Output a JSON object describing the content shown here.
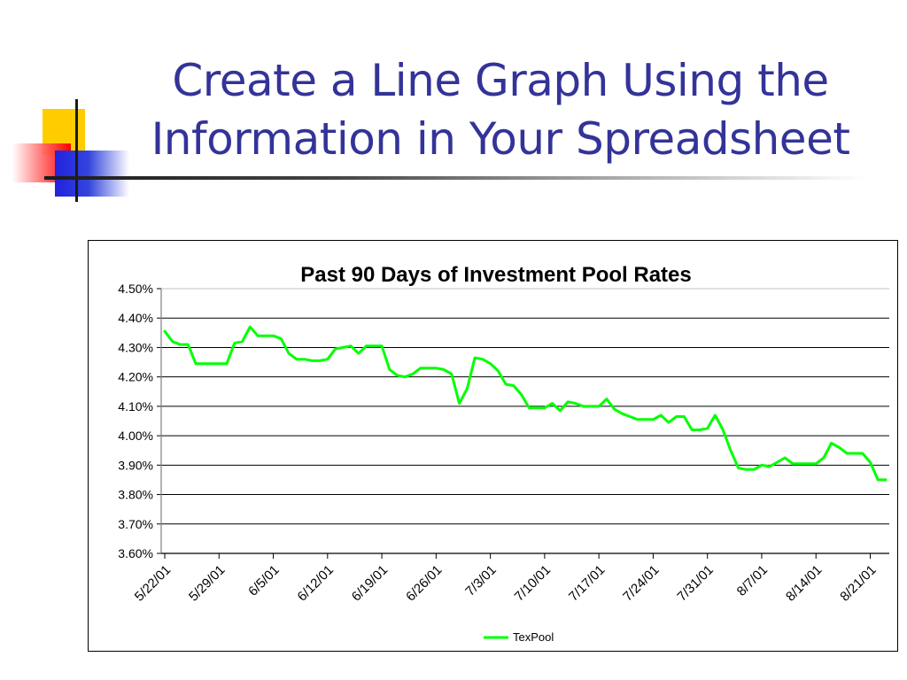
{
  "slide": {
    "title_line1": "Create a Line Graph Using the",
    "title_line2": "Information in Your Spreadsheet"
  },
  "colors": {
    "title": "#333399",
    "series": "#00ff00",
    "gridline": "#000000",
    "axis": "#808080"
  },
  "chart_data": {
    "type": "line",
    "title": "Past 90 Days of Investment Pool Rates",
    "xlabel": "",
    "ylabel": "",
    "ylim": [
      3.6,
      4.5
    ],
    "yticks": [
      "4.50%",
      "4.40%",
      "4.30%",
      "4.20%",
      "4.10%",
      "4.00%",
      "3.90%",
      "3.80%",
      "3.70%",
      "3.60%"
    ],
    "xticks": [
      "5/22/01",
      "5/29/01",
      "6/5/01",
      "6/12/01",
      "6/19/01",
      "6/26/01",
      "7/3/01",
      "7/10/01",
      "7/17/01",
      "7/24/01",
      "7/31/01",
      "8/7/01",
      "8/14/01",
      "8/21/01"
    ],
    "grid": "horizontal",
    "legend": "bottom",
    "series": [
      {
        "name": "TexPool",
        "color": "#00ff00",
        "points": [
          [
            "5/22/01",
            4.355
          ],
          [
            "5/23/01",
            4.32
          ],
          [
            "5/24/01",
            4.31
          ],
          [
            "5/25/01",
            4.31
          ],
          [
            "5/26/01",
            4.245
          ],
          [
            "5/27/01",
            4.245
          ],
          [
            "5/28/01",
            4.245
          ],
          [
            "5/29/01",
            4.245
          ],
          [
            "5/30/01",
            4.245
          ],
          [
            "5/31/01",
            4.315
          ],
          [
            "6/1/01",
            4.32
          ],
          [
            "6/2/01",
            4.37
          ],
          [
            "6/3/01",
            4.34
          ],
          [
            "6/4/01",
            4.34
          ],
          [
            "6/5/01",
            4.34
          ],
          [
            "6/6/01",
            4.33
          ],
          [
            "6/7/01",
            4.28
          ],
          [
            "6/8/01",
            4.26
          ],
          [
            "6/9/01",
            4.26
          ],
          [
            "6/10/01",
            4.255
          ],
          [
            "6/11/01",
            4.255
          ],
          [
            "6/12/01",
            4.26
          ],
          [
            "6/13/01",
            4.295
          ],
          [
            "6/14/01",
            4.3
          ],
          [
            "6/15/01",
            4.305
          ],
          [
            "6/16/01",
            4.28
          ],
          [
            "6/17/01",
            4.305
          ],
          [
            "6/18/01",
            4.305
          ],
          [
            "6/19/01",
            4.305
          ],
          [
            "6/20/01",
            4.225
          ],
          [
            "6/21/01",
            4.205
          ],
          [
            "6/22/01",
            4.2
          ],
          [
            "6/23/01",
            4.21
          ],
          [
            "6/24/01",
            4.23
          ],
          [
            "6/25/01",
            4.23
          ],
          [
            "6/26/01",
            4.23
          ],
          [
            "6/27/01",
            4.225
          ],
          [
            "6/28/01",
            4.21
          ],
          [
            "6/29/01",
            4.11
          ],
          [
            "6/30/01",
            4.16
          ],
          [
            "7/1/01",
            4.265
          ],
          [
            "7/2/01",
            4.26
          ],
          [
            "7/3/01",
            4.245
          ],
          [
            "7/4/01",
            4.22
          ],
          [
            "7/5/01",
            4.175
          ],
          [
            "7/6/01",
            4.17
          ],
          [
            "7/7/01",
            4.14
          ],
          [
            "7/8/01",
            4.095
          ],
          [
            "7/9/01",
            4.095
          ],
          [
            "7/10/01",
            4.095
          ],
          [
            "7/11/01",
            4.11
          ],
          [
            "7/12/01",
            4.085
          ],
          [
            "7/13/01",
            4.115
          ],
          [
            "7/14/01",
            4.11
          ],
          [
            "7/15/01",
            4.1
          ],
          [
            "7/16/01",
            4.1
          ],
          [
            "7/17/01",
            4.1
          ],
          [
            "7/18/01",
            4.125
          ],
          [
            "7/19/01",
            4.09
          ],
          [
            "7/20/01",
            4.075
          ],
          [
            "7/21/01",
            4.065
          ],
          [
            "7/22/01",
            4.055
          ],
          [
            "7/23/01",
            4.055
          ],
          [
            "7/24/01",
            4.055
          ],
          [
            "7/25/01",
            4.07
          ],
          [
            "7/26/01",
            4.045
          ],
          [
            "7/27/01",
            4.065
          ],
          [
            "7/28/01",
            4.065
          ],
          [
            "7/29/01",
            4.02
          ],
          [
            "7/30/01",
            4.02
          ],
          [
            "7/31/01",
            4.025
          ],
          [
            "8/1/01",
            4.07
          ],
          [
            "8/2/01",
            4.02
          ],
          [
            "8/3/01",
            3.95
          ],
          [
            "8/4/01",
            3.89
          ],
          [
            "8/5/01",
            3.885
          ],
          [
            "8/6/01",
            3.885
          ],
          [
            "8/7/01",
            3.9
          ],
          [
            "8/8/01",
            3.895
          ],
          [
            "8/9/01",
            3.91
          ],
          [
            "8/10/01",
            3.925
          ],
          [
            "8/11/01",
            3.905
          ],
          [
            "8/12/01",
            3.905
          ],
          [
            "8/13/01",
            3.905
          ],
          [
            "8/14/01",
            3.905
          ],
          [
            "8/15/01",
            3.925
          ],
          [
            "8/16/01",
            3.975
          ],
          [
            "8/17/01",
            3.96
          ],
          [
            "8/18/01",
            3.94
          ],
          [
            "8/19/01",
            3.94
          ],
          [
            "8/20/01",
            3.94
          ],
          [
            "8/21/01",
            3.91
          ],
          [
            "8/22/01",
            3.85
          ],
          [
            "8/23/01",
            3.85
          ]
        ]
      }
    ]
  }
}
